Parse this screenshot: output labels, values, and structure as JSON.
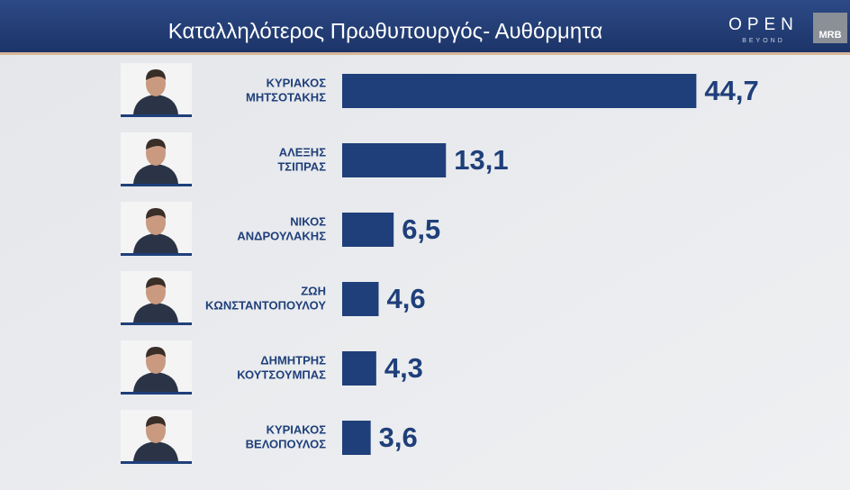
{
  "chart_data": {
    "type": "bar",
    "orientation": "horizontal",
    "title": "Καταλληλότερος Πρωθυπουργός- Αυθόρμητα",
    "categories": [
      [
        "ΚΥΡΙΑΚΟΣ",
        "ΜΗΤΣΟΤΑΚΗΣ"
      ],
      [
        "ΑΛΕΞΗΣ",
        "ΤΣΙΠΡΑΣ"
      ],
      [
        "ΝΙΚΟΣ",
        "ΑΝΔΡΟΥΛΑΚΗΣ"
      ],
      [
        "ΖΩΗ",
        "ΚΩΝΣΤΑΝΤΟΠΟΥΛΟΥ"
      ],
      [
        "ΔΗΜΗΤΡΗΣ",
        "ΚΟΥΤΣΟΥΜΠΑΣ"
      ],
      [
        "ΚΥΡΙΑΚΟΣ",
        "ΒΕΛΟΠΟΥΛΟΣ"
      ]
    ],
    "values": [
      44.7,
      13.1,
      6.5,
      4.6,
      4.3,
      3.6
    ],
    "value_labels": [
      "44,7",
      "13,1",
      "6,5",
      "4,6",
      "4,3",
      "3,6"
    ],
    "color": "#1f3f7a"
  },
  "branding": {
    "channel": "OPEN",
    "tagline": "BEYOND",
    "pollster": "MRB"
  }
}
